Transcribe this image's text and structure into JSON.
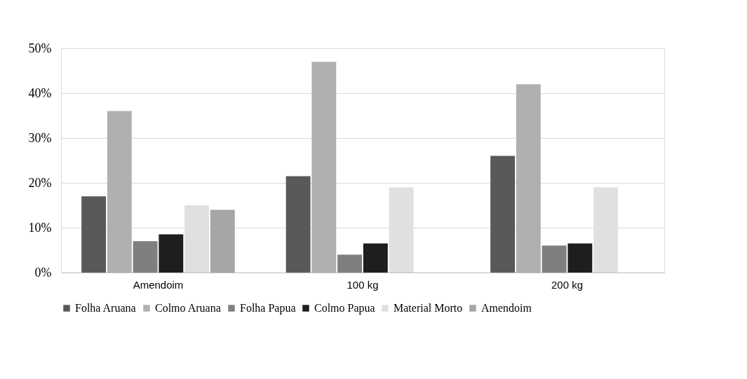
{
  "chart_data": {
    "type": "bar",
    "categories": [
      "Amendoim",
      "100 kg",
      "200 kg"
    ],
    "series": [
      {
        "name": "Folha Aruana",
        "color": "#595959",
        "values": [
          17,
          21.5,
          26
        ]
      },
      {
        "name": "Colmo Aruana",
        "color": "#b0b0b0",
        "values": [
          36,
          47,
          42
        ]
      },
      {
        "name": "Folha Papua",
        "color": "#7f7f7f",
        "values": [
          7,
          4,
          6
        ]
      },
      {
        "name": "Colmo Papua",
        "color": "#1e1e1e",
        "values": [
          8.5,
          6.5,
          6.5
        ]
      },
      {
        "name": "Material Morto",
        "color": "#e0e0e0",
        "values": [
          15,
          19,
          19
        ]
      },
      {
        "name": "Amendoim",
        "color": "#a6a6a6",
        "values": [
          14,
          0,
          0
        ]
      }
    ],
    "ylim": [
      0,
      50
    ],
    "yticks": [
      {
        "value": 0,
        "label": "0%"
      },
      {
        "value": 10,
        "label": "10%"
      },
      {
        "value": 20,
        "label": "20%"
      },
      {
        "value": 30,
        "label": "30%"
      },
      {
        "value": 40,
        "label": "40%"
      },
      {
        "value": 50,
        "label": "50%"
      }
    ],
    "grid": "y",
    "legend": "bottom"
  }
}
